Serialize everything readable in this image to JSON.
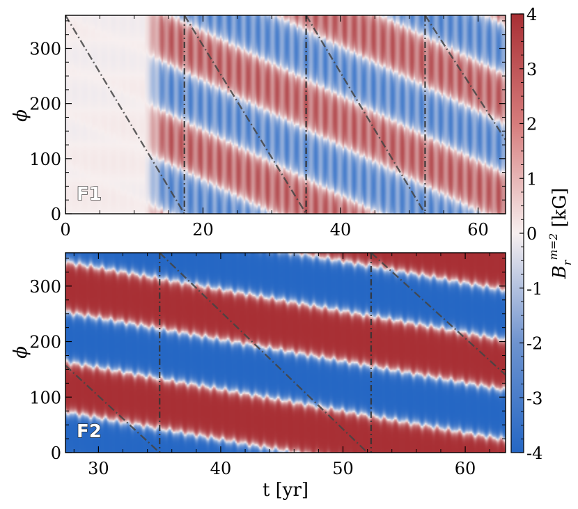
{
  "chart_data": [
    {
      "type": "heatmap",
      "panel_label": "F1",
      "xlabel": "",
      "ylabel": "ϕ",
      "xlim": [
        0,
        64
      ],
      "ylim": [
        0,
        360
      ],
      "xticks": [
        0,
        20,
        40,
        60
      ],
      "yticks": [
        0,
        100,
        200,
        300
      ],
      "field": {
        "quiet_until_t": 11.5,
        "band_drift_deg_per_yr": -5.9,
        "band_period_deg": 180,
        "amplitude_kG": 3.3,
        "note_values": "wavenumber m=2 radial field pattern, alternating red(+) / blue(-) bands"
      },
      "vertical_lines_t": [
        17.3,
        35.0,
        52.3
      ],
      "diagonal_lines": [
        {
          "t0": 0.0,
          "phi0": 360,
          "t1": 17.3,
          "phi1": 0
        },
        {
          "t0": 17.3,
          "phi0": 360,
          "t1": 35.0,
          "phi1": 0
        },
        {
          "t0": 35.0,
          "phi0": 360,
          "t1": 52.3,
          "phi1": 0
        },
        {
          "t0": 52.3,
          "phi0": 360,
          "t1": 64.0,
          "phi1": 134
        }
      ]
    },
    {
      "type": "heatmap",
      "panel_label": "F2",
      "xlabel": "t [yr]",
      "ylabel": "ϕ",
      "xlim": [
        27.3,
        63.3
      ],
      "ylim": [
        0,
        360
      ],
      "xticks": [
        30,
        40,
        50,
        60
      ],
      "yticks": [
        0,
        100,
        200,
        300
      ],
      "field": {
        "band_drift_deg_per_yr": -3.9,
        "band_period_deg": 180,
        "amplitude_kG": 4.0
      },
      "vertical_lines_t": [
        35.0,
        52.3
      ],
      "diagonal_lines": [
        {
          "t0": 27.3,
          "phi0": 157,
          "t1": 35.0,
          "phi1": 0
        },
        {
          "t0": 35.0,
          "phi0": 360,
          "t1": 52.0,
          "phi1": 0
        },
        {
          "t0": 52.3,
          "phi0": 360,
          "t1": 63.3,
          "phi1": 140
        }
      ]
    }
  ],
  "colorbar": {
    "label": "B_r^{m=2} [kG]",
    "label_main": "B",
    "label_sub": "r",
    "label_sup": "m=2",
    "label_unit": " [kG]",
    "min": -4,
    "max": 4,
    "ticks": [
      "4",
      "3",
      "2",
      "1",
      "0",
      "-1",
      "-2",
      "-3",
      "-4"
    ],
    "colors": {
      "neg": "#2567c4",
      "zero": "#f7efef",
      "pos": "#a82f34"
    }
  }
}
